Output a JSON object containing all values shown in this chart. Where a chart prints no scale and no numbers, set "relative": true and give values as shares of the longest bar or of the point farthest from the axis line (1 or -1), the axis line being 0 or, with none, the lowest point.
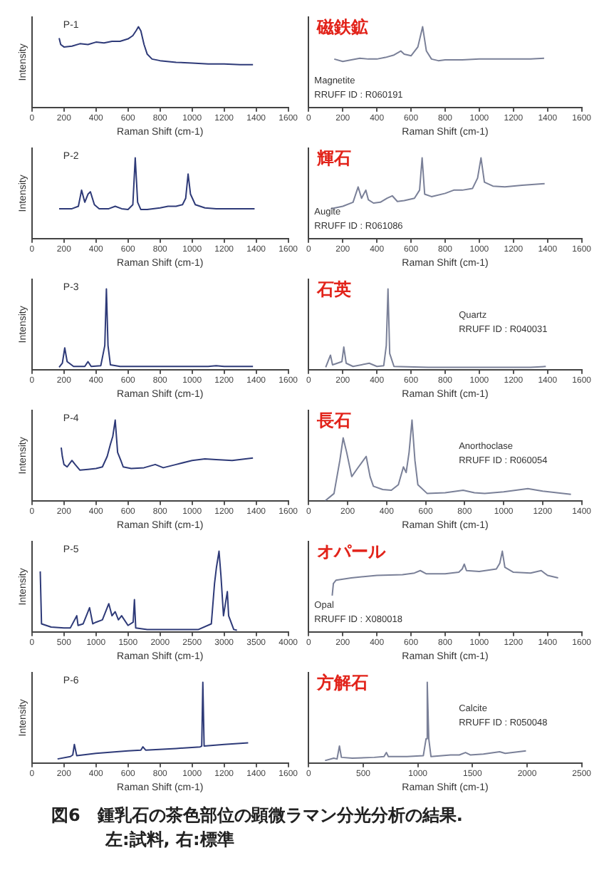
{
  "chart_data": [
    {
      "type": "line",
      "title": "P-1",
      "xlabel": "Raman Shift (cm-1)",
      "ylabel": "Intensity",
      "relative": true,
      "color": "#2e3a78",
      "xlim": [
        0,
        1600
      ],
      "xticks": [
        0,
        200,
        400,
        600,
        800,
        1000,
        1200,
        1400,
        1600
      ],
      "x": [
        170,
        180,
        200,
        250,
        300,
        350,
        400,
        450,
        500,
        550,
        600,
        630,
        650,
        665,
        680,
        700,
        720,
        750,
        800,
        900,
        1000,
        1100,
        1200,
        1300,
        1380
      ],
      "values": [
        0.86,
        0.78,
        0.75,
        0.76,
        0.79,
        0.78,
        0.81,
        0.8,
        0.82,
        0.82,
        0.85,
        0.89,
        0.95,
        1,
        0.95,
        0.78,
        0.66,
        0.6,
        0.58,
        0.56,
        0.55,
        0.54,
        0.54,
        0.53,
        0.53
      ]
    },
    {
      "type": "line",
      "title": "磁鉄鉱",
      "xlabel": "Raman Shift (cm-1)",
      "relative": true,
      "color": "#7a8098",
      "xlim": [
        0,
        1600
      ],
      "xticks": [
        0,
        200,
        400,
        600,
        800,
        1000,
        1200,
        1400,
        1600
      ],
      "annotations": [
        "Magnetite",
        "RRUFF ID : R060191"
      ],
      "x": [
        150,
        200,
        250,
        300,
        350,
        400,
        450,
        500,
        540,
        560,
        600,
        640,
        668,
        690,
        720,
        760,
        800,
        900,
        1000,
        1100,
        1200,
        1300,
        1380
      ],
      "values": [
        0.6,
        0.57,
        0.59,
        0.61,
        0.6,
        0.6,
        0.62,
        0.65,
        0.7,
        0.66,
        0.64,
        0.75,
        1,
        0.7,
        0.6,
        0.58,
        0.59,
        0.59,
        0.6,
        0.6,
        0.6,
        0.6,
        0.61
      ]
    },
    {
      "type": "line",
      "title": "P-2",
      "xlabel": "Raman Shift (cm-1)",
      "ylabel": "Intensity",
      "relative": true,
      "color": "#2e3a78",
      "xlim": [
        0,
        1600
      ],
      "xticks": [
        0,
        200,
        400,
        600,
        800,
        1000,
        1200,
        1400,
        1600
      ],
      "x": [
        170,
        250,
        290,
        310,
        330,
        350,
        365,
        390,
        420,
        480,
        520,
        560,
        600,
        630,
        645,
        660,
        680,
        720,
        800,
        850,
        900,
        940,
        960,
        975,
        990,
        1020,
        1080,
        1150,
        1250,
        1390
      ],
      "values": [
        0.37,
        0.37,
        0.4,
        0.6,
        0.45,
        0.55,
        0.58,
        0.42,
        0.37,
        0.37,
        0.4,
        0.37,
        0.36,
        0.42,
        1,
        0.45,
        0.36,
        0.36,
        0.38,
        0.4,
        0.4,
        0.42,
        0.5,
        0.8,
        0.55,
        0.42,
        0.38,
        0.37,
        0.37,
        0.37
      ]
    },
    {
      "type": "line",
      "title": "輝石",
      "xlabel": "Raman Shift (cm-1)",
      "relative": true,
      "color": "#7a8098",
      "xlim": [
        0,
        1600
      ],
      "xticks": [
        0,
        200,
        400,
        600,
        800,
        1000,
        1200,
        1400,
        1600
      ],
      "annotations": [
        "Augite",
        "RRUFF ID : R061086"
      ],
      "x": [
        130,
        200,
        260,
        290,
        310,
        335,
        350,
        380,
        420,
        460,
        490,
        520,
        560,
        620,
        650,
        665,
        680,
        720,
        800,
        850,
        900,
        960,
        990,
        1010,
        1030,
        1080,
        1150,
        1250,
        1383
      ],
      "values": [
        0.37,
        0.4,
        0.45,
        0.64,
        0.5,
        0.6,
        0.48,
        0.44,
        0.45,
        0.5,
        0.53,
        0.46,
        0.47,
        0.5,
        0.6,
        1,
        0.55,
        0.52,
        0.56,
        0.6,
        0.6,
        0.62,
        0.75,
        1,
        0.7,
        0.65,
        0.64,
        0.66,
        0.68
      ]
    },
    {
      "type": "line",
      "title": "P-3",
      "xlabel": "Raman Shift (cm-1)",
      "ylabel": "Intensity",
      "relative": true,
      "color": "#2e3a78",
      "xlim": [
        0,
        1600
      ],
      "xticks": [
        0,
        200,
        400,
        600,
        800,
        1000,
        1200,
        1400,
        1600
      ],
      "x": [
        170,
        190,
        205,
        220,
        260,
        330,
        350,
        370,
        430,
        455,
        465,
        475,
        490,
        550,
        700,
        900,
        1100,
        1150,
        1200,
        1380
      ],
      "values": [
        0.03,
        0.08,
        0.27,
        0.1,
        0.04,
        0.04,
        0.1,
        0.04,
        0.05,
        0.3,
        1,
        0.3,
        0.06,
        0.04,
        0.04,
        0.04,
        0.04,
        0.05,
        0.04,
        0.04
      ]
    },
    {
      "type": "line",
      "title": "石英",
      "xlabel": "Raman Shift (cm-1)",
      "relative": true,
      "color": "#7a8098",
      "xlim": [
        0,
        1600
      ],
      "xticks": [
        0,
        200,
        400,
        600,
        800,
        1000,
        1200,
        1400,
        1600
      ],
      "annotations": [
        "Quartz",
        "RRUFF ID : R040031"
      ],
      "x": [
        100,
        128,
        140,
        195,
        206,
        220,
        260,
        355,
        400,
        440,
        455,
        465,
        475,
        500,
        700,
        900,
        1100,
        1300,
        1390
      ],
      "values": [
        0.03,
        0.18,
        0.06,
        0.1,
        0.28,
        0.08,
        0.04,
        0.08,
        0.04,
        0.05,
        0.3,
        1,
        0.2,
        0.04,
        0.03,
        0.03,
        0.03,
        0.03,
        0.04
      ]
    },
    {
      "type": "line",
      "title": "P-4",
      "xlabel": "Raman Shift (cm-1)",
      "ylabel": "Intensity",
      "relative": true,
      "color": "#2e3a78",
      "xlim": [
        0,
        1600
      ],
      "xticks": [
        0,
        200,
        400,
        600,
        800,
        1000,
        1200,
        1400,
        1600
      ],
      "x": [
        183,
        190,
        200,
        220,
        250,
        270,
        300,
        350,
        400,
        440,
        470,
        490,
        505,
        520,
        535,
        555,
        570,
        620,
        700,
        770,
        820,
        900,
        1000,
        1080,
        1150,
        1250,
        1380
      ],
      "values": [
        0.66,
        0.55,
        0.45,
        0.42,
        0.5,
        0.45,
        0.38,
        0.39,
        0.4,
        0.42,
        0.55,
        0.7,
        0.8,
        1,
        0.6,
        0.5,
        0.42,
        0.4,
        0.41,
        0.45,
        0.41,
        0.45,
        0.5,
        0.52,
        0.51,
        0.5,
        0.53
      ]
    },
    {
      "type": "line",
      "title": "長石",
      "xlabel": "Raman Shift (cm-1)",
      "relative": true,
      "color": "#7a8098",
      "xlim": [
        0,
        1400
      ],
      "xticks": [
        0,
        200,
        400,
        600,
        800,
        1000,
        1200,
        1400
      ],
      "annotations": [
        "Anorthoclase",
        "RRUFF ID : R060054"
      ],
      "x": [
        85,
        130,
        160,
        177,
        195,
        221,
        250,
        295,
        315,
        332,
        380,
        424,
        460,
        486,
        500,
        515,
        530,
        545,
        560,
        608,
        700,
        792,
        850,
        903,
        1000,
        1124,
        1200,
        1345
      ],
      "values": [
        0,
        0.09,
        0.5,
        0.78,
        0.6,
        0.3,
        0.4,
        0.55,
        0.3,
        0.18,
        0.14,
        0.13,
        0.2,
        0.42,
        0.35,
        0.6,
        1,
        0.5,
        0.2,
        0.09,
        0.1,
        0.13,
        0.1,
        0.09,
        0.11,
        0.15,
        0.12,
        0.08
      ]
    },
    {
      "type": "line",
      "title": "P-5",
      "xlabel": "Raman Shift (cm-1)",
      "ylabel": "Intensity",
      "relative": true,
      "color": "#2e3a78",
      "xlim": [
        0,
        4000
      ],
      "xticks": [
        0,
        500,
        1000,
        1500,
        2000,
        2500,
        3000,
        3500,
        4000
      ],
      "x": [
        130,
        150,
        300,
        500,
        600,
        700,
        720,
        800,
        900,
        950,
        1000,
        1100,
        1200,
        1250,
        1300,
        1350,
        1400,
        1500,
        1580,
        1600,
        1620,
        1800,
        2200,
        2600,
        2800,
        2850,
        2880,
        2920,
        2950,
        2990,
        3050,
        3070,
        3150,
        3200
      ],
      "values": [
        0.75,
        0.1,
        0.06,
        0.05,
        0.05,
        0.2,
        0.08,
        0.1,
        0.3,
        0.1,
        0.12,
        0.15,
        0.35,
        0.2,
        0.25,
        0.15,
        0.2,
        0.08,
        0.12,
        0.4,
        0.05,
        0.03,
        0.03,
        0.03,
        0.1,
        0.6,
        0.8,
        1,
        0.7,
        0.2,
        0.5,
        0.2,
        0.03,
        0.02
      ]
    },
    {
      "type": "line",
      "title": "オパール",
      "xlabel": "Raman Shift (cm-1)",
      "relative": true,
      "color": "#7a8098",
      "xlim": [
        0,
        1600
      ],
      "xticks": [
        0,
        200,
        400,
        600,
        800,
        1000,
        1200,
        1400,
        1600
      ],
      "annotations": [
        "Opal",
        "RRUFF ID : X080018"
      ],
      "x": [
        138,
        145,
        160,
        250,
        400,
        550,
        620,
        654,
        690,
        800,
        880,
        900,
        912,
        925,
        1000,
        1100,
        1120,
        1135,
        1150,
        1200,
        1300,
        1363,
        1400,
        1462
      ],
      "values": [
        0.45,
        0.6,
        0.64,
        0.67,
        0.7,
        0.71,
        0.73,
        0.76,
        0.72,
        0.72,
        0.74,
        0.78,
        0.84,
        0.76,
        0.75,
        0.78,
        0.85,
        1,
        0.8,
        0.74,
        0.73,
        0.76,
        0.7,
        0.67
      ]
    },
    {
      "type": "line",
      "title": "P-6",
      "xlabel": "Raman Shift (cm-1)",
      "ylabel": "Intensity",
      "relative": true,
      "color": "#2e3a78",
      "xlim": [
        0,
        1600
      ],
      "xticks": [
        0,
        200,
        400,
        600,
        800,
        1000,
        1200,
        1400,
        1600
      ],
      "x": [
        160,
        240,
        255,
        265,
        280,
        400,
        600,
        680,
        693,
        710,
        900,
        1050,
        1060,
        1067,
        1075,
        1200,
        1350
      ],
      "values": [
        0.05,
        0.08,
        0.1,
        0.23,
        0.09,
        0.12,
        0.15,
        0.16,
        0.2,
        0.16,
        0.18,
        0.2,
        0.21,
        1,
        0.21,
        0.23,
        0.25
      ]
    },
    {
      "type": "line",
      "title": "方解石",
      "xlabel": "Raman Shift (cm-1)",
      "relative": true,
      "color": "#7a8098",
      "xlim": [
        0,
        2500
      ],
      "xticks": [
        0,
        500,
        1000,
        1500,
        2000,
        2500
      ],
      "annotations": [
        "Calcite",
        "RRUFF ID : R050048"
      ],
      "x": [
        150,
        230,
        260,
        282,
        300,
        400,
        600,
        690,
        712,
        730,
        900,
        1050,
        1075,
        1086,
        1100,
        1120,
        1300,
        1380,
        1436,
        1480,
        1600,
        1749,
        1800,
        1990
      ],
      "values": [
        0.03,
        0.06,
        0.05,
        0.21,
        0.07,
        0.06,
        0.07,
        0.08,
        0.13,
        0.08,
        0.08,
        0.09,
        0.3,
        1,
        0.3,
        0.08,
        0.1,
        0.1,
        0.13,
        0.1,
        0.11,
        0.14,
        0.12,
        0.15
      ]
    },
    {
      "type": "other",
      "annotations": [
        "図6　鍾乳石の茶色部位の顕微ラマン分光分析の結果.",
        "左:試料, 右:標準"
      ]
    }
  ]
}
